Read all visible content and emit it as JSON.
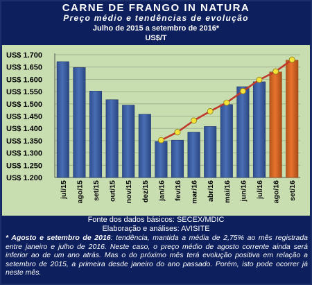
{
  "header": {
    "title": "CARNE DE FRANGO IN NATURA",
    "subtitle": "Preço médio e tendências de evolução",
    "period": "Julho de 2015 a setembro de 2016*",
    "unit": "US$/T"
  },
  "footer": {
    "source": "Fonte dos dados básicos: SECEX/MDIC",
    "analysis": "Elaboração e análises: AVISITE",
    "note_bold": "*  Agosto e setembro de 2016",
    "note_text": ":  tendência, mantida a média de 2,75% ao mês registrada entre janeiro e julho de 2016. Neste caso, o preço médio de agosto corrente ainda será inferior ao de um ano atrás. Mas o do próximo mês terá evolução positiva em relação a setembro de 2015, a primeira desde janeiro do ano passado. Porém, isto pode ocorrer já neste mês."
  },
  "colors": {
    "bar_actual": "#4a6fb5",
    "bar_projected": "#e8732e",
    "trend_line": "#c0392b",
    "marker": "#f5e23a",
    "plot_bg": "#c8ddb0"
  },
  "chart_data": {
    "type": "bar",
    "categories": [
      "jul/15",
      "ago/15",
      "set/15",
      "out/15",
      "nov/15",
      "dez/15",
      "jan/16",
      "fev/16",
      "mar/16",
      "abr/16",
      "mai/16",
      "jun/16",
      "jul/16",
      "ago/16",
      "set/16"
    ],
    "values": [
      1672,
      1648,
      1552,
      1517,
      1495,
      1458,
      1347,
      1352,
      1385,
      1408,
      1497,
      1570,
      1590,
      1630,
      1678
    ],
    "projected": [
      false,
      false,
      false,
      false,
      false,
      false,
      false,
      false,
      false,
      false,
      false,
      false,
      false,
      true,
      true
    ],
    "trend": {
      "categories": [
        "jan/16",
        "fev/16",
        "mar/16",
        "abr/16",
        "mai/16",
        "jun/16",
        "jul/16",
        "ago/16",
        "set/16"
      ],
      "values": [
        1352,
        1385,
        1432,
        1470,
        1505,
        1552,
        1598,
        1632,
        1680
      ]
    },
    "yticks": [
      "US$ 1.200",
      "US$ 1.250",
      "US$ 1.300",
      "US$ 1.350",
      "US$ 1.400",
      "US$ 1.450",
      "US$ 1.500",
      "US$ 1.550",
      "US$ 1.600",
      "US$ 1.650",
      "US$ 1.700"
    ],
    "ylim": [
      1200,
      1700
    ],
    "grid": true
  }
}
